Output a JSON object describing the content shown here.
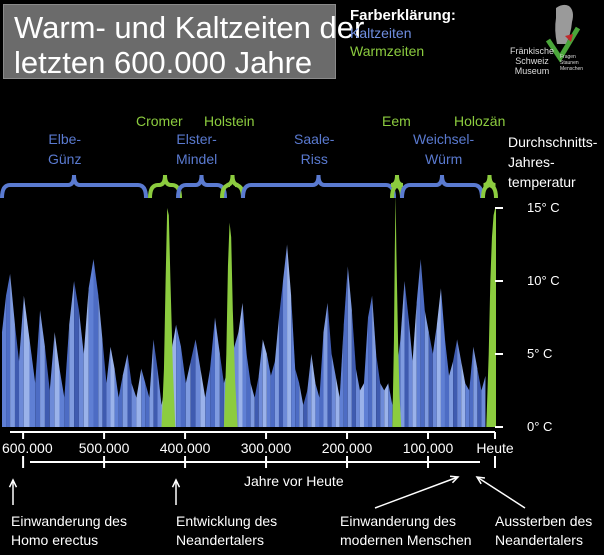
{
  "title": {
    "line1": "Warm- und Kaltzeiten der",
    "line2": "letzten 600.000 Jahre"
  },
  "legend": {
    "title": "Farberklärung:",
    "cold_label": "Kaltzeiten",
    "warm_label": "Warmzeiten"
  },
  "logo": {
    "name": "Fränkische Schweiz Museum",
    "line1": "Fränkische",
    "line2": "Schweiz",
    "line3": "Museum",
    "tag1": "Fragen",
    "tag2": "Staunen",
    "tag3": "Menschen"
  },
  "colors": {
    "background": "#000000",
    "cold": "#5a7ad0",
    "warm": "#8ccc3f",
    "text": "#ffffff"
  },
  "periods": [
    {
      "id": "elbe",
      "line1": "Elbe-",
      "line2": "Günz",
      "type": "cold"
    },
    {
      "id": "cromer",
      "line1": "Cromer",
      "line2": "",
      "type": "warm"
    },
    {
      "id": "elster",
      "line1": "Elster-",
      "line2": "Mindel",
      "type": "cold"
    },
    {
      "id": "holstein",
      "line1": "Holstein",
      "line2": "",
      "type": "warm"
    },
    {
      "id": "saale",
      "line1": "Saale-",
      "line2": "Riss",
      "type": "cold"
    },
    {
      "id": "eem",
      "line1": "Eem",
      "line2": "",
      "type": "warm"
    },
    {
      "id": "weichsel",
      "line1": "Weichsel-",
      "line2": "Würm",
      "type": "cold"
    },
    {
      "id": "holozaen",
      "line1": "Holozän",
      "line2": "",
      "type": "warm"
    }
  ],
  "chart_data": {
    "type": "area",
    "title": "Warm- und Kaltzeiten der letzten 600.000 Jahre",
    "xlabel": "Jahre vor Heute",
    "ylabel": "Durchschnitts-Jahres-temperatur",
    "ylabel_lines": [
      "Durchschnitts-",
      "Jahres-",
      "temperatur"
    ],
    "x_unit": "Jahre vor Heute",
    "y_unit": "°C",
    "xlim": [
      610000,
      0
    ],
    "ylim": [
      0,
      15
    ],
    "x_ticks": [
      {
        "value": 600000,
        "label": "600.000"
      },
      {
        "value": 500000,
        "label": "500.000"
      },
      {
        "value": 400000,
        "label": "400.000"
      },
      {
        "value": 300000,
        "label": "300.000"
      },
      {
        "value": 200000,
        "label": "200.000"
      },
      {
        "value": 100000,
        "label": "100.000"
      },
      {
        "value": 0,
        "label": "Heute"
      }
    ],
    "y_ticks": [
      {
        "value": 0,
        "label": "0° C"
      },
      {
        "value": 5,
        "label": "5° C"
      },
      {
        "value": 10,
        "label": "10° C"
      },
      {
        "value": 15,
        "label": "15° C"
      }
    ],
    "series": [
      {
        "name": "Kaltzeiten",
        "color": "#5a7ad0",
        "x": [
          610000,
          605000,
          600000,
          594000,
          589000,
          583000,
          576000,
          569000,
          563000,
          557000,
          551000,
          545000,
          539000,
          533000,
          527000,
          521000,
          515000,
          509000,
          503000,
          497000,
          491000,
          486000,
          481000,
          476000,
          471000,
          466000,
          461000,
          455000,
          450000,
          444000,
          438000,
          433000,
          428000,
          423000,
          418000,
          413000,
          395000,
          389000,
          383000,
          377000,
          371000,
          365000,
          359000,
          353000,
          347000,
          341000,
          336000,
          318000,
          313000,
          308000,
          303000,
          298000,
          293000,
          288000,
          283000,
          278000,
          273000,
          268000,
          263000,
          258000,
          253000,
          248000,
          243000,
          238000,
          233000,
          228000,
          223000,
          218000,
          213000,
          208000,
          203000,
          198000,
          193000,
          188000,
          183000,
          178000,
          173000,
          168000,
          163000,
          158000,
          153000,
          148000,
          143000,
          138000,
          133000,
          128000,
          118000,
          113000,
          108000,
          103000,
          98000,
          93000,
          88000,
          83000,
          78000,
          73000,
          68000,
          63000,
          58000,
          53000,
          48000,
          43000,
          38000,
          33000,
          28000,
          23000,
          18000,
          13000
        ],
        "y": [
          6.5,
          9.0,
          10.5,
          7.0,
          4.5,
          9.0,
          6.0,
          3.0,
          8.0,
          5.5,
          2.5,
          6.5,
          4.0,
          2.0,
          7.0,
          10.0,
          8.0,
          5.0,
          9.5,
          11.5,
          9.0,
          6.0,
          3.0,
          5.5,
          4.0,
          2.0,
          3.5,
          5.0,
          3.0,
          2.0,
          4.0,
          3.0,
          2.0,
          6.0,
          4.0,
          1.5,
          7.0,
          5.5,
          3.0,
          4.5,
          6.0,
          4.0,
          2.0,
          4.0,
          7.5,
          5.0,
          3.0,
          6.5,
          8.5,
          5.0,
          3.0,
          2.0,
          3.5,
          6.0,
          5.0,
          3.5,
          4.5,
          7.5,
          10.0,
          12.5,
          9.0,
          4.0,
          3.0,
          1.5,
          2.5,
          5.0,
          3.0,
          2.0,
          6.5,
          8.5,
          5.0,
          3.5,
          2.0,
          7.0,
          11.0,
          8.0,
          4.0,
          2.5,
          3.0,
          7.5,
          9.0,
          5.0,
          3.0,
          2.5,
          3.0,
          1.5,
          6.0,
          10.0,
          7.5,
          4.5,
          8.5,
          11.5,
          8.0,
          6.5,
          5.0,
          7.0,
          9.5,
          6.0,
          3.5,
          4.5,
          6.0,
          4.5,
          3.0,
          2.5,
          5.5,
          4.0,
          2.5,
          3.5
        ]
      },
      {
        "name": "Warmzeiten",
        "color": "#8ccc3f",
        "x": [
          413000,
          410000,
          408000,
          406000,
          404000,
          402000,
          399000,
          396000,
          336000,
          333000,
          331000,
          329000,
          327000,
          325000,
          322000,
          319000,
          128000,
          126000,
          125000,
          124000,
          123000,
          121000,
          119000,
          117000,
          12000,
          9000,
          7000,
          5000,
          3000,
          1000,
          0
        ],
        "y": [
          0,
          4.0,
          10.0,
          15.0,
          14.5,
          10.0,
          4.0,
          0,
          0,
          5.0,
          11.0,
          14.0,
          13.0,
          8.0,
          3.0,
          0,
          0,
          6.0,
          12.0,
          16.0,
          12.0,
          6.0,
          2.0,
          0,
          0,
          5.0,
          10.0,
          13.0,
          14.5,
          15.0,
          15.0
        ]
      }
    ],
    "annotations": [
      {
        "text": "Einwanderung des Homo erectus",
        "line1": "Einwanderung des",
        "line2": "Homo erectus",
        "x": 600000
      },
      {
        "text": "Entwicklung des Neandertalers",
        "line1": "Entwicklung des",
        "line2": "Neandertalers",
        "x": 400000
      },
      {
        "text": "Einwanderung des modernen Menschen",
        "line1": "Einwanderung des",
        "line2": "modernen Menschen",
        "x": 40000
      },
      {
        "text": "Aussterben des Neandertalers",
        "line1": "Aussterben des",
        "line2": "Neandertalers",
        "x": 28000
      }
    ],
    "grid": false
  }
}
